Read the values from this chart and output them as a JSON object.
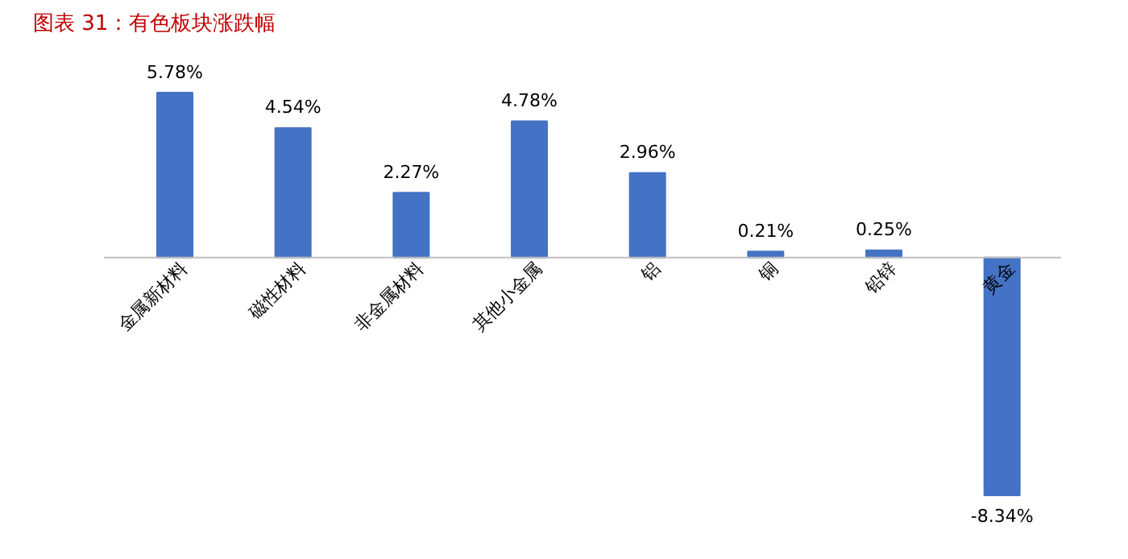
{
  "chart_data": {
    "type": "bar",
    "title": "图表 31：有色板块涨跌幅",
    "categories": [
      "金属新材料",
      "磁性材料",
      "非金属材料",
      "其他小金属",
      "铝",
      "铜",
      "铅锌",
      "黄金"
    ],
    "values": [
      5.78,
      4.54,
      2.27,
      4.78,
      2.96,
      0.21,
      0.25,
      -8.34
    ],
    "value_labels": [
      "5.78%",
      "4.54%",
      "2.27%",
      "4.78%",
      "2.96%",
      "0.21%",
      "0.25%",
      "-8.34%"
    ],
    "color": "#4472c4",
    "grid": false
  }
}
